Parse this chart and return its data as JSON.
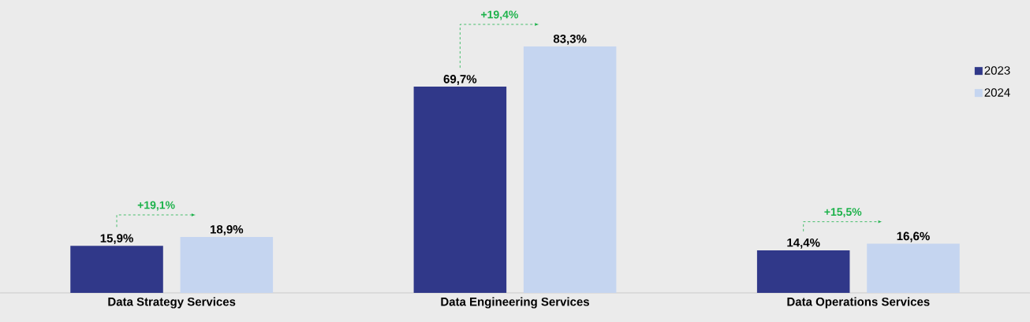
{
  "chart_data": {
    "type": "bar",
    "categories": [
      "Data Strategy Services",
      "Data Engineering Services",
      "Data Operations Services"
    ],
    "series": [
      {
        "name": "2023",
        "color": "#303889",
        "values": [
          15.9,
          69.7,
          14.4
        ],
        "value_labels": [
          "15,9%",
          "69,7%",
          "14,4%"
        ]
      },
      {
        "name": "2024",
        "color": "#c5d5f0",
        "values": [
          18.9,
          83.3,
          16.6
        ],
        "value_labels": [
          "18,9%",
          "83,3%",
          "16,6%"
        ]
      }
    ],
    "annotations": [
      "+19,1%",
      "+19,4%",
      "+15,5%"
    ],
    "legend": "right",
    "grid": false
  }
}
